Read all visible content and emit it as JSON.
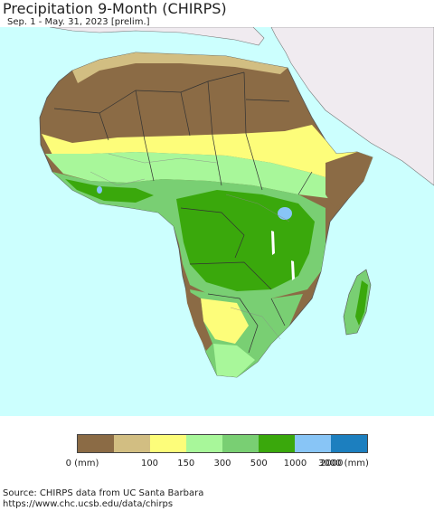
{
  "header": {
    "title": "Precipitation 9-Month (CHIRPS)",
    "subtitle": "Sep. 1 - May. 31, 2023 [prelim.]"
  },
  "legend": {
    "colors": [
      "#8b6b45",
      "#d2be82",
      "#fdfd7a",
      "#a8f79a",
      "#79cf73",
      "#3aa80c",
      "#88c5f6",
      "#1c7fbf"
    ],
    "labels": [
      "0 (mm)",
      "100",
      "150",
      "300",
      "500",
      "1000",
      "2000",
      "3000 (mm)"
    ]
  },
  "map": {
    "ocean_color": "#ccfffe",
    "non_africa_land_color": "#f0ebf0"
  },
  "footer": {
    "source_line": "Source: CHIRPS data from UC Santa Barbara",
    "url_line": "https://www.chc.ucsb.edu/data/chirps"
  }
}
